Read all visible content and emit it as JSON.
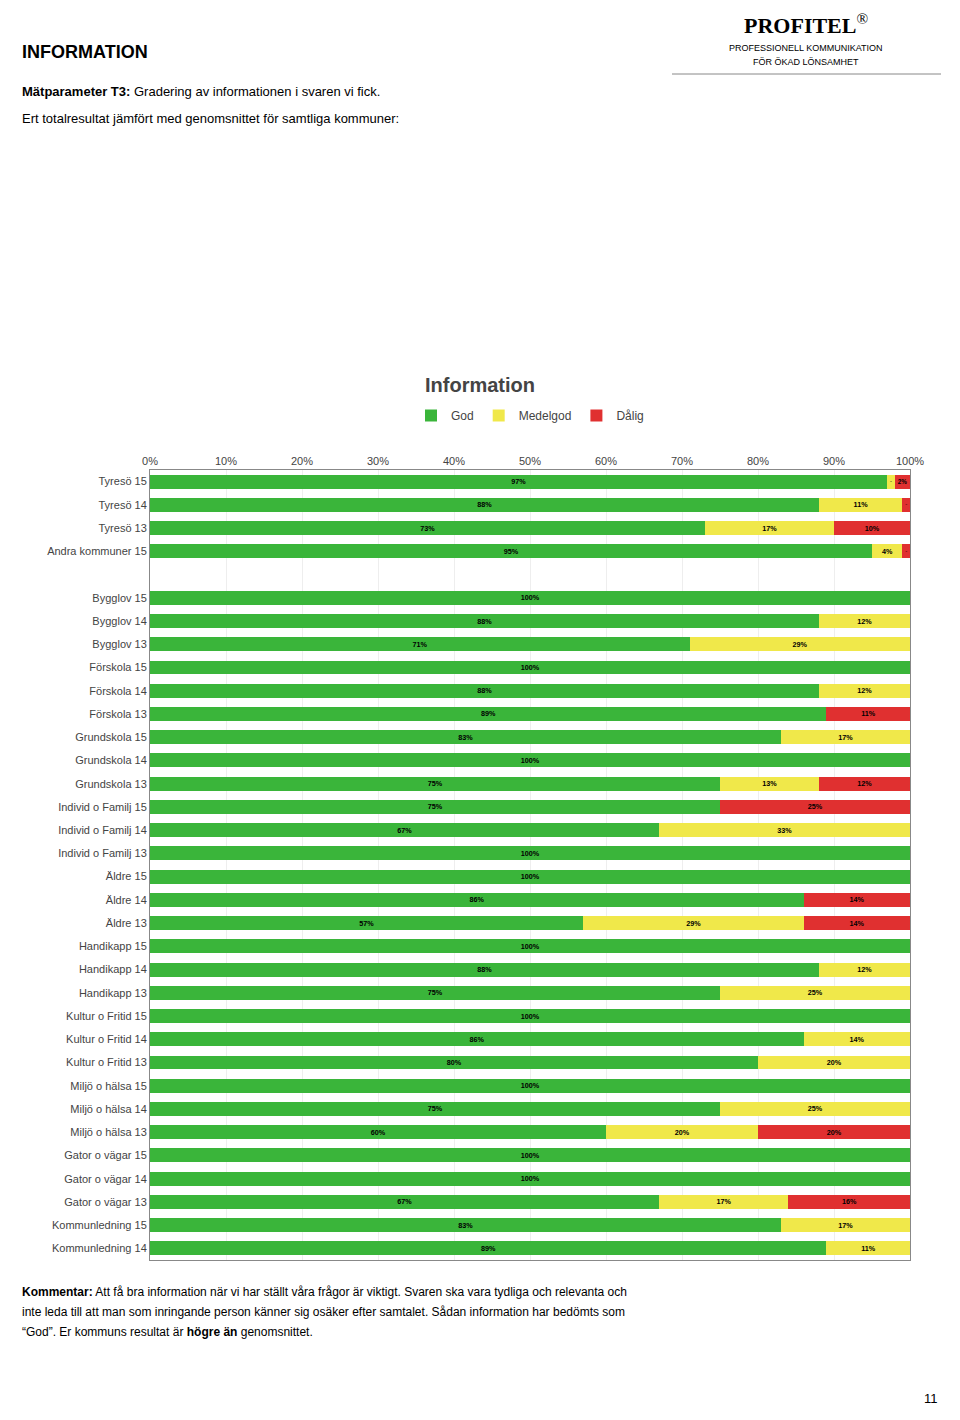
{
  "chart_data": {
    "type": "bar",
    "orientation": "horizontal",
    "stacked": true,
    "title": "Information",
    "categories": [
      "Tyresö 15",
      "Tyresö 14",
      "Tyresö 13",
      "Andra kommuner 15",
      null,
      "Bygglov 15",
      "Bygglov 14",
      "Bygglov 13",
      "Förskola 15",
      "Förskola 14",
      "Förskola 13",
      "Grundskola 15",
      "Grundskola 14",
      "Grundskola 13",
      "Individ o Familj 15",
      "Individ o Familj 14",
      "Individ o Familj 13",
      "Äldre 15",
      "Äldre 14",
      "Äldre 13",
      "Handikapp 15",
      "Handikapp 14",
      "Handikapp 13",
      "Kultur o Fritid 15",
      "Kultur o Fritid 14",
      "Kultur o Fritid 13",
      "Miljö o hälsa 15",
      "Miljö o hälsa 14",
      "Miljö o hälsa 13",
      "Gator o vägar 15",
      "Gator o vägar 14",
      "Gator o vägar 13",
      "Kommunledning 15",
      "Kommunledning 14"
    ],
    "series": [
      {
        "name": "God",
        "color": "#3ab53a",
        "values": [
          97,
          88,
          73,
          95,
          0,
          100,
          88,
          71,
          100,
          88,
          89,
          83,
          100,
          75,
          75,
          67,
          100,
          100,
          86,
          57,
          100,
          88,
          75,
          100,
          86,
          80,
          100,
          75,
          60,
          100,
          100,
          67,
          83,
          89
        ],
        "value_labels": [
          "97%",
          "88%",
          "73%",
          "95%",
          null,
          "100%",
          "88%",
          "71%",
          "100%",
          "88%",
          "89%",
          "83%",
          "100%",
          "75%",
          "75%",
          "67%",
          "100%",
          "100%",
          "86%",
          "57%",
          "100%",
          "88%",
          "75%",
          "100%",
          "86%",
          "80%",
          "100%",
          "75%",
          "60%",
          "100%",
          "100%",
          "67%",
          "83%",
          "89%"
        ]
      },
      {
        "name": "Medelgod",
        "color": "#f0e84a",
        "values": [
          1,
          11,
          17,
          4,
          0,
          0,
          12,
          29,
          0,
          12,
          0,
          17,
          0,
          13,
          0,
          33,
          0,
          0,
          0,
          29,
          0,
          12,
          25,
          0,
          14,
          20,
          0,
          25,
          20,
          0,
          0,
          17,
          17,
          11
        ],
        "value_labels": [
          "1%",
          "11%",
          "17%",
          "4%",
          null,
          null,
          "12%",
          "29%",
          null,
          "12%",
          null,
          "17%",
          null,
          "13%",
          null,
          "33%",
          null,
          null,
          null,
          "29%",
          null,
          "12%",
          "25%",
          null,
          "14%",
          "20%",
          null,
          "25%",
          "20%",
          null,
          null,
          "17%",
          "17%",
          "11%"
        ]
      },
      {
        "name": "Dålig",
        "color": "#e03030",
        "values": [
          2,
          1,
          10,
          1,
          0,
          0,
          0,
          0,
          0,
          0,
          11,
          0,
          0,
          12,
          25,
          0,
          0,
          0,
          14,
          14,
          0,
          0,
          0,
          0,
          0,
          0,
          0,
          0,
          20,
          0,
          0,
          16,
          0,
          0
        ],
        "value_labels": [
          "2%",
          "1%",
          "10%",
          "1%",
          null,
          null,
          null,
          null,
          null,
          null,
          "11%",
          null,
          null,
          "12%",
          "25%",
          null,
          null,
          null,
          "14%",
          "14%",
          null,
          null,
          null,
          null,
          null,
          null,
          null,
          null,
          "20%",
          null,
          null,
          "16%",
          null,
          null
        ]
      }
    ],
    "xlim": [
      0,
      100
    ],
    "xticks": [
      {
        "value": 0,
        "label": "0%"
      },
      {
        "value": 10,
        "label": "10%"
      },
      {
        "value": 20,
        "label": "20%"
      },
      {
        "value": 30,
        "label": "30%"
      },
      {
        "value": 40,
        "label": "40%"
      },
      {
        "value": 50,
        "label": "50%"
      },
      {
        "value": 60,
        "label": "60%"
      },
      {
        "value": 70,
        "label": "70%"
      },
      {
        "value": 80,
        "label": "80%"
      },
      {
        "value": 90,
        "label": "90%"
      },
      {
        "value": 100,
        "label": "100%"
      }
    ],
    "grid": true,
    "legend": "top",
    "data_labels": true,
    "annotations": [
      "INFORMATION",
      "Mätparameter T3:",
      " Gradering av informationen i svaren vi fick.",
      "Ert totalresultat jämfört med genomsnittet för samtliga kommuner:",
      "Kommentar:",
      "Att få bra information när vi har ställt våra frågor är viktigt. Svaren ska vara tydliga och relevanta och",
      "inte leda till att man som inringande person känner sig osäker efter samtalet. Sådan information har bedömts som",
      "“God”. Er kommuns resultat är ",
      "högre än",
      " genomsnittet.",
      "11",
      "PROFITEL",
      "®",
      "PROFESSIONELL KOMMUNIKATION",
      "FÖR ÖKAD LÖNSAMHET"
    ]
  }
}
